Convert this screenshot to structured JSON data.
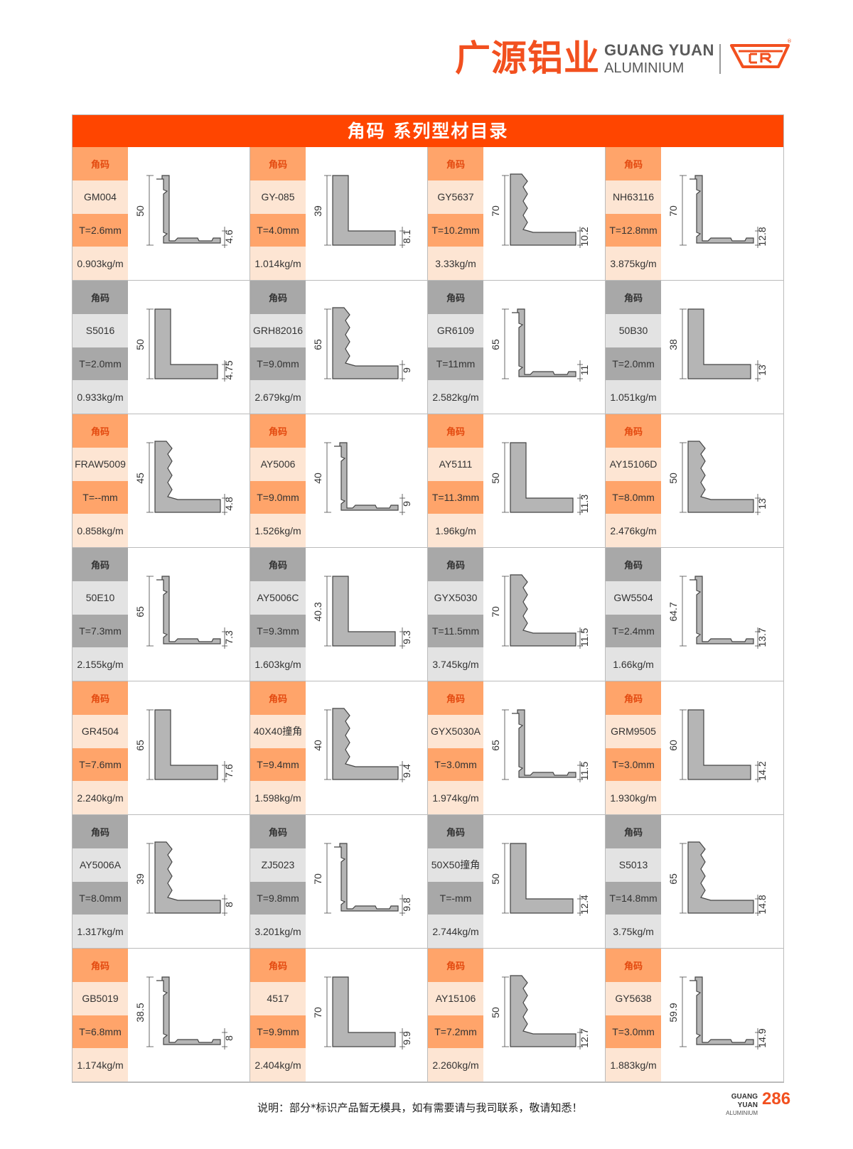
{
  "header": {
    "brand_cn": "广源铝业",
    "brand_en_1": "GUANG YUAN",
    "brand_en_2": "ALUMINIUM",
    "registered": "®"
  },
  "catalog": {
    "title": "角码 系列型材目录",
    "products": [
      {
        "category": "角码",
        "code": "GM004",
        "thickness": "T=2.6mm",
        "weight": "0.903kg/m",
        "dim_left": "50",
        "dim_right": "4.6"
      },
      {
        "category": "角码",
        "code": "GY-085",
        "thickness": "T=4.0mm",
        "weight": "1.014kg/m",
        "dim_left": "39",
        "dim_right": "8.1"
      },
      {
        "category": "角码",
        "code": "GY5637",
        "thickness": "T=10.2mm",
        "weight": "3.33kg/m",
        "dim_left": "70",
        "dim_right": "10.2"
      },
      {
        "category": "角码",
        "code": "NH63116",
        "thickness": "T=12.8mm",
        "weight": "3.875kg/m",
        "dim_left": "70",
        "dim_right": "12.8"
      },
      {
        "category": "角码",
        "code": "S5016",
        "thickness": "T=2.0mm",
        "weight": "0.933kg/m",
        "dim_left": "50",
        "dim_right": "4.75"
      },
      {
        "category": "角码",
        "code": "GRH82016",
        "thickness": "T=9.0mm",
        "weight": "2.679kg/m",
        "dim_left": "65",
        "dim_right": "9"
      },
      {
        "category": "角码",
        "code": "GR6109",
        "thickness": "T=11mm",
        "weight": "2.582kg/m",
        "dim_left": "65",
        "dim_right": "11"
      },
      {
        "category": "角码",
        "code": "50B30",
        "thickness": "T=2.0mm",
        "weight": "1.051kg/m",
        "dim_left": "38",
        "dim_right": "13"
      },
      {
        "category": "角码",
        "code": "FRAW5009",
        "thickness": "T=--mm",
        "weight": "0.858kg/m",
        "dim_left": "45",
        "dim_right": "4.8"
      },
      {
        "category": "角码",
        "code": "AY5006",
        "thickness": "T=9.0mm",
        "weight": "1.526kg/m",
        "dim_left": "40",
        "dim_right": "9"
      },
      {
        "category": "角码",
        "code": "AY5111",
        "thickness": "T=11.3mm",
        "weight": "1.96kg/m",
        "dim_left": "50",
        "dim_right": "11.3"
      },
      {
        "category": "角码",
        "code": "AY15106D",
        "thickness": "T=8.0mm",
        "weight": "2.476kg/m",
        "dim_left": "50",
        "dim_right": "13"
      },
      {
        "category": "角码",
        "code": "50E10",
        "thickness": "T=7.3mm",
        "weight": "2.155kg/m",
        "dim_left": "65",
        "dim_right": "7.3"
      },
      {
        "category": "角码",
        "code": "AY5006C",
        "thickness": "T=9.3mm",
        "weight": "1.603kg/m",
        "dim_left": "40.3",
        "dim_right": "9.3"
      },
      {
        "category": "角码",
        "code": "GYX5030",
        "thickness": "T=11.5mm",
        "weight": "3.745kg/m",
        "dim_left": "70",
        "dim_right": "11.5"
      },
      {
        "category": "角码",
        "code": "GW5504",
        "thickness": "T=2.4mm",
        "weight": "1.66kg/m",
        "dim_left": "64.7",
        "dim_right": "13.7"
      },
      {
        "category": "角码",
        "code": "GR4504",
        "thickness": "T=7.6mm",
        "weight": "2.240kg/m",
        "dim_left": "65",
        "dim_right": "7.6"
      },
      {
        "category": "角码",
        "code": "40X40撞角",
        "thickness": "T=9.4mm",
        "weight": "1.598kg/m",
        "dim_left": "40",
        "dim_right": "9.4"
      },
      {
        "category": "角码",
        "code": "GYX5030A",
        "thickness": "T=3.0mm",
        "weight": "1.974kg/m",
        "dim_left": "65",
        "dim_right": "11.5"
      },
      {
        "category": "角码",
        "code": "GRM9505",
        "thickness": "T=3.0mm",
        "weight": "1.930kg/m",
        "dim_left": "60",
        "dim_right": "14.2"
      },
      {
        "category": "角码",
        "code": "AY5006A",
        "thickness": "T=8.0mm",
        "weight": "1.317kg/m",
        "dim_left": "39",
        "dim_right": "8"
      },
      {
        "category": "角码",
        "code": "ZJ5023",
        "thickness": "T=9.8mm",
        "weight": "3.201kg/m",
        "dim_left": "70",
        "dim_right": "9.8"
      },
      {
        "category": "角码",
        "code": "50X50撞角",
        "thickness": "T=-mm",
        "weight": "2.744kg/m",
        "dim_left": "50",
        "dim_right": "12.4"
      },
      {
        "category": "角码",
        "code": "S5013",
        "thickness": "T=14.8mm",
        "weight": "3.75kg/m",
        "dim_left": "65",
        "dim_right": "14.8"
      },
      {
        "category": "角码",
        "code": "GB5019",
        "thickness": "T=6.8mm",
        "weight": "1.174kg/m",
        "dim_left": "38.5",
        "dim_right": "8"
      },
      {
        "category": "角码",
        "code": "4517",
        "thickness": "T=9.9mm",
        "weight": "2.404kg/m",
        "dim_left": "70",
        "dim_right": "9.9"
      },
      {
        "category": "角码",
        "code": "AY15106",
        "thickness": "T=7.2mm",
        "weight": "2.260kg/m",
        "dim_left": "50",
        "dim_right": "12.7"
      },
      {
        "category": "角码",
        "code": "GY5638",
        "thickness": "T=3.0mm",
        "weight": "1.883kg/m",
        "dim_left": "59.9",
        "dim_right": "14.9"
      }
    ]
  },
  "footer": {
    "note": "说明：部分*标识产品暂无模具，如有需要请与我司联系，敬请知悉！",
    "brand_1": "GUANG YUAN",
    "brand_2": "ALUMINIUM",
    "page_number": "286"
  }
}
